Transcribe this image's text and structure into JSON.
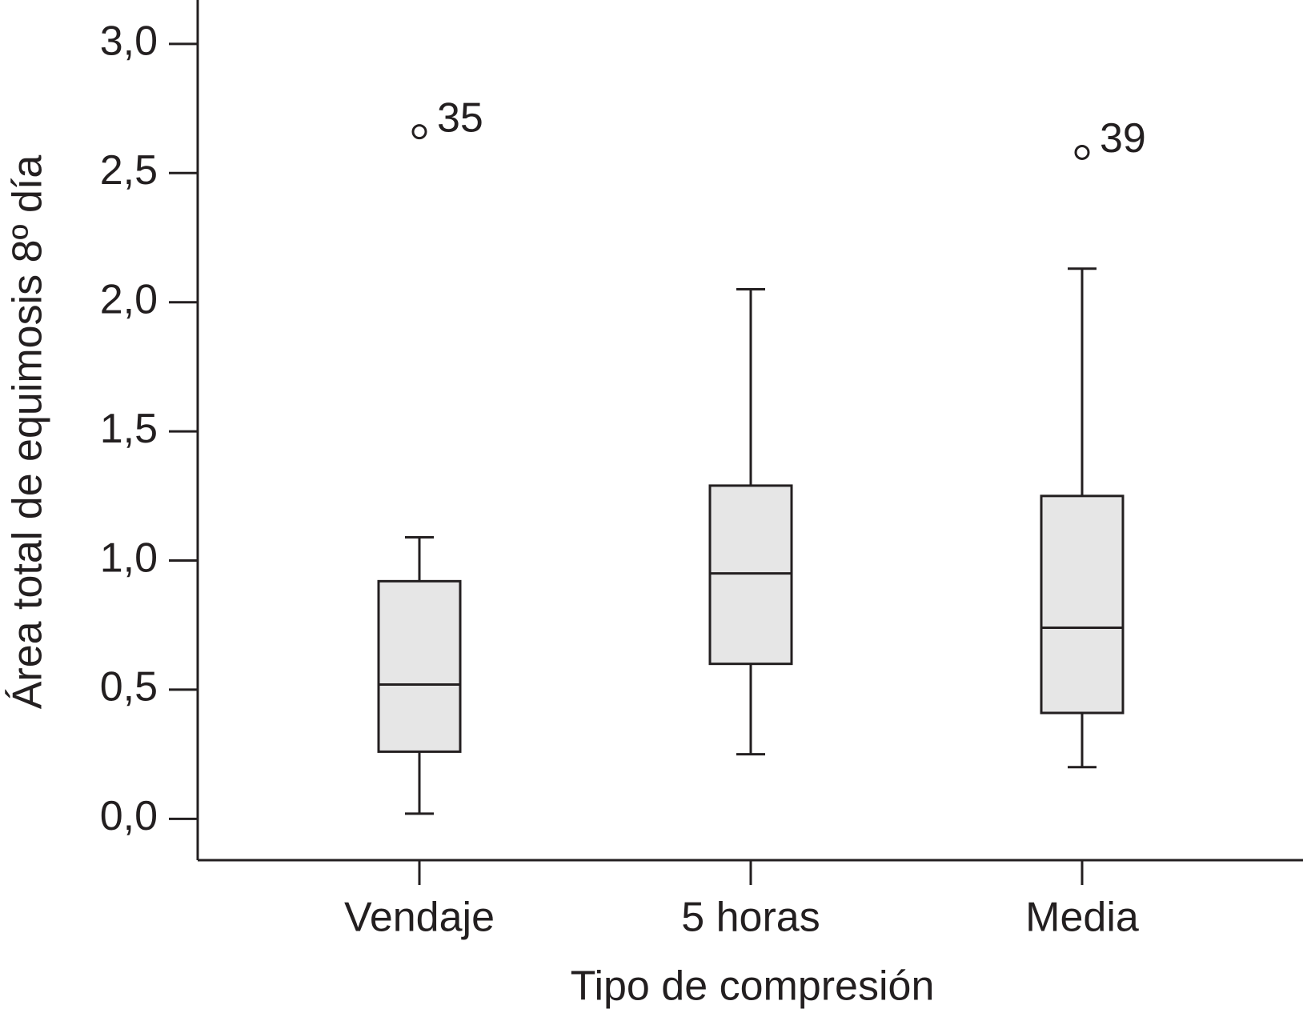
{
  "chart_data": {
    "type": "box",
    "x_label": "Tipo de compresión",
    "y_label": "Área total de equimosis 8º día",
    "categories": [
      "Vendaje",
      "5 horas",
      "Media"
    ],
    "fill_color": "#e6e6e6",
    "boxes": [
      {
        "whisker_low": 0.02,
        "q1": 0.26,
        "median": 0.52,
        "q3": 0.92,
        "whisker_high": 1.09,
        "outliers": [
          {
            "value": 2.66,
            "label": "35"
          }
        ]
      },
      {
        "whisker_low": 0.25,
        "q1": 0.6,
        "median": 0.95,
        "q3": 1.29,
        "whisker_high": 2.05
      },
      {
        "whisker_low": 0.2,
        "q1": 0.41,
        "median": 0.74,
        "q3": 1.25,
        "whisker_high": 2.13,
        "outliers": [
          {
            "value": 2.58,
            "label": "39"
          }
        ]
      }
    ],
    "ylim": [
      -0.16,
      3.17
    ],
    "yticks": [
      {
        "value": 0,
        "label": "0,0"
      },
      {
        "value": 0.5,
        "label": "0,5"
      },
      {
        "value": 1,
        "label": "1,0"
      },
      {
        "value": 1.5,
        "label": "1,5"
      },
      {
        "value": 2,
        "label": "2,0"
      },
      {
        "value": 2.5,
        "label": "2,5"
      },
      {
        "value": 3,
        "label": "3,0"
      }
    ]
  }
}
